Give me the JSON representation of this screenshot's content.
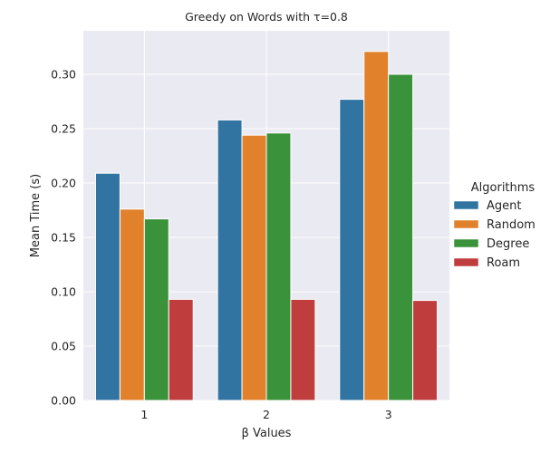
{
  "chart_data": {
    "type": "bar",
    "title": "Greedy on Words with τ=0.8",
    "xlabel": "β Values",
    "ylabel": "Mean Time (s)",
    "categories": [
      "1",
      "2",
      "3"
    ],
    "ylim": [
      0,
      0.34
    ],
    "yticks": [
      "0.00",
      "0.05",
      "0.10",
      "0.15",
      "0.20",
      "0.25",
      "0.30"
    ],
    "grid": true,
    "legend_title": "Algorithms",
    "legend_position": "right",
    "series": [
      {
        "name": "Agent",
        "color": "#3274a1",
        "values": [
          0.209,
          0.258,
          0.277
        ]
      },
      {
        "name": "Random",
        "color": "#e1812c",
        "values": [
          0.176,
          0.244,
          0.321
        ]
      },
      {
        "name": "Degree",
        "color": "#3a923a",
        "values": [
          0.167,
          0.246,
          0.3
        ]
      },
      {
        "name": "Roam",
        "color": "#c03d3e",
        "values": [
          0.093,
          0.093,
          0.092
        ]
      }
    ]
  }
}
